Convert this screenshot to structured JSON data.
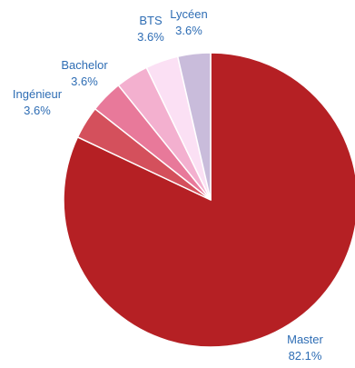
{
  "chart_data": {
    "type": "pie",
    "title": "",
    "slices": [
      {
        "label": "Master",
        "value": 82.1,
        "value_label": "82.1%",
        "color": "#b52024"
      },
      {
        "label": "Ingénieur",
        "value": 3.6,
        "value_label": "3.6%",
        "color": "#d4505c"
      },
      {
        "label": "Bachelor",
        "value": 3.6,
        "value_label": "3.6%",
        "color": "#e8799a"
      },
      {
        "label": "BTS",
        "value": 3.6,
        "value_label": "3.6%",
        "color": "#f3b0cf"
      },
      {
        "label": "Lycéen",
        "value": 3.6,
        "value_label": "3.6%",
        "color": "#fbe0f4"
      },
      {
        "label": "",
        "value": 3.6,
        "value_label": "",
        "color": "#c9bcdb"
      }
    ],
    "legend": "none",
    "slice_border_color": "#ffffff"
  }
}
